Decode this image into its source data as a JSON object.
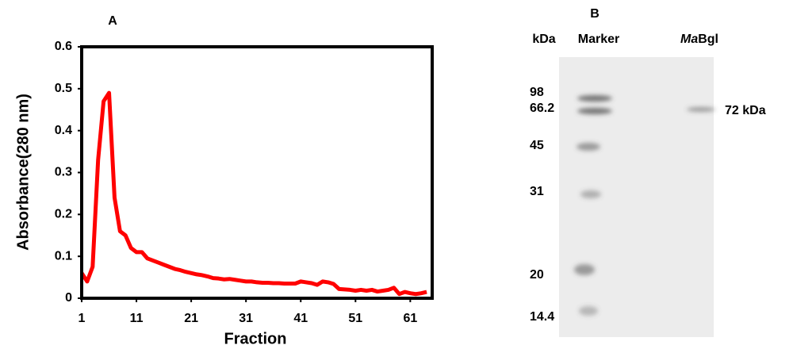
{
  "chart_data": {
    "type": "line",
    "panel_label": "A",
    "x_label": "Fraction",
    "y_label": "Absorbance(280 nm)",
    "x": [
      1,
      2,
      3,
      4,
      5,
      6,
      7,
      8,
      9,
      10,
      11,
      12,
      13,
      14,
      15,
      16,
      17,
      18,
      19,
      20,
      21,
      22,
      23,
      24,
      25,
      26,
      27,
      28,
      29,
      30,
      31,
      32,
      33,
      34,
      35,
      36,
      37,
      38,
      39,
      40,
      41,
      42,
      43,
      44,
      45,
      46,
      47,
      48,
      49,
      50,
      51,
      52,
      53,
      54,
      55,
      56,
      57,
      58,
      59,
      60,
      61,
      62,
      63,
      64
    ],
    "values": [
      0.06,
      0.04,
      0.075,
      0.33,
      0.47,
      0.49,
      0.24,
      0.16,
      0.15,
      0.12,
      0.11,
      0.11,
      0.095,
      0.09,
      0.085,
      0.08,
      0.075,
      0.07,
      0.067,
      0.063,
      0.06,
      0.057,
      0.055,
      0.052,
      0.048,
      0.047,
      0.045,
      0.046,
      0.044,
      0.042,
      0.04,
      0.04,
      0.038,
      0.037,
      0.037,
      0.036,
      0.036,
      0.035,
      0.035,
      0.035,
      0.04,
      0.038,
      0.036,
      0.032,
      0.04,
      0.038,
      0.034,
      0.022,
      0.021,
      0.02,
      0.018,
      0.02,
      0.018,
      0.02,
      0.016,
      0.018,
      0.02,
      0.025,
      0.01,
      0.015,
      0.012,
      0.01,
      0.012,
      0.015
    ],
    "color": "#ff0000",
    "xlim": [
      1,
      65
    ],
    "xticks": [
      1,
      11,
      21,
      31,
      41,
      51,
      61
    ],
    "ylim": [
      0,
      0.6
    ],
    "yticks": [
      0,
      0.1,
      0.2,
      0.3,
      0.4,
      0.5,
      0.6
    ]
  },
  "gel": {
    "panel_label": "B",
    "unit_header": "kDa",
    "marker_header": "Marker",
    "sample_header_parts": [
      "Ma",
      "Bgl"
    ],
    "marker_sizes": [
      "98",
      "66.2",
      "45",
      "31",
      "20",
      "14.4"
    ],
    "band_label": "72 kDa"
  }
}
